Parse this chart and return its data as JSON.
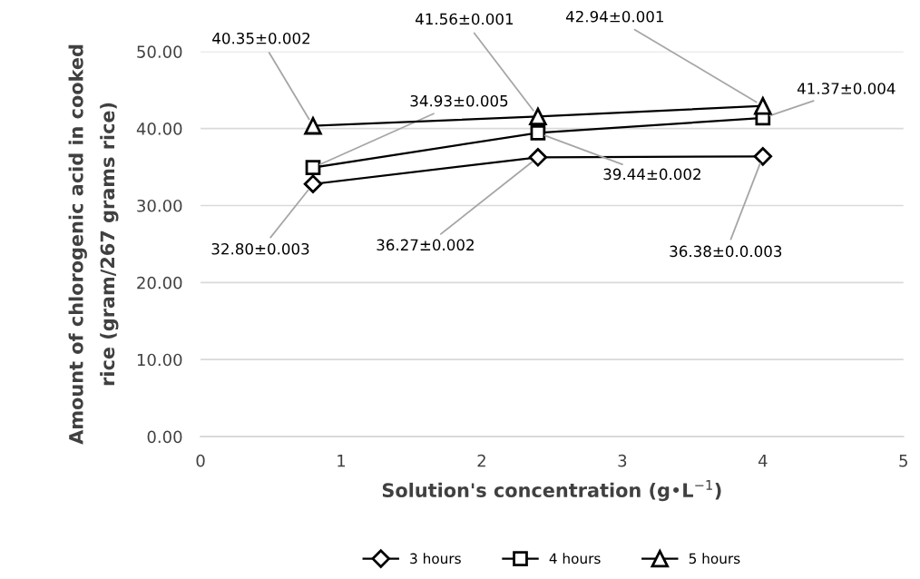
{
  "chart_data": {
    "type": "line",
    "xlabel": "Solution's concentration (g•L$^{−1}$)",
    "ylabel": "Amount of chlorogenic acid in cooked\nrice (gram/267 grams rice)",
    "x": [
      0.8,
      2.4,
      4.0
    ],
    "series": [
      {
        "name": "3 hours",
        "color": "#000000",
        "marker": "diamond",
        "values": [
          32.8,
          36.27,
          36.38
        ],
        "value_labels": [
          "32.80±0.003",
          "36.27±0.002",
          "36.38±0.0.003"
        ]
      },
      {
        "name": "4 hours",
        "color": "#000000",
        "marker": "square",
        "values": [
          34.93,
          39.44,
          41.37
        ],
        "value_labels": [
          "34.93±0.005",
          "39.44±0.002",
          "41.37±0.004"
        ]
      },
      {
        "name": "5 hours",
        "color": "#000000",
        "marker": "triangle",
        "values": [
          40.35,
          41.56,
          42.94
        ],
        "value_labels": [
          "40.35±0.002",
          "41.56±0.001",
          "42.94±0.001"
        ]
      }
    ],
    "xlim": [
      0,
      5
    ],
    "xticks": [
      0,
      1,
      2,
      3,
      4,
      5
    ],
    "ylim": [
      0,
      50
    ],
    "yticks": [
      {
        "value": 0,
        "label": "0.00"
      },
      {
        "value": 10,
        "label": "10.00"
      },
      {
        "value": 20,
        "label": "20.00"
      },
      {
        "value": 30,
        "label": "30.00"
      },
      {
        "value": 40,
        "label": "40.00"
      },
      {
        "value": 50,
        "label": "50.00"
      }
    ],
    "grid": "y",
    "legend": "bottom",
    "line_style": "solid"
  }
}
